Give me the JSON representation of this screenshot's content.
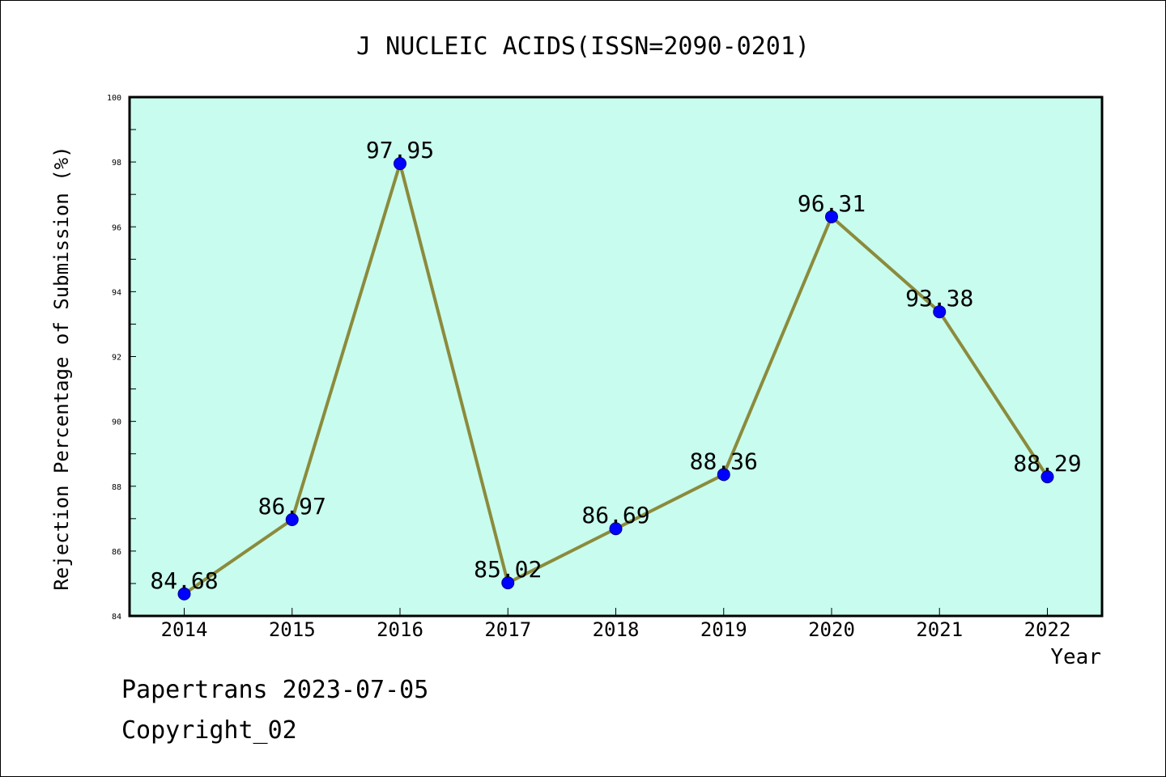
{
  "chart_data": {
    "type": "line",
    "title": "J NUCLEIC ACIDS(ISSN=2090-0201)",
    "xlabel": "Year",
    "ylabel": "Rejection Percentage of Submission (%)",
    "categories": [
      "2014",
      "2015",
      "2016",
      "2017",
      "2018",
      "2019",
      "2020",
      "2021",
      "2022"
    ],
    "values": [
      84.68,
      86.97,
      97.95,
      85.02,
      86.69,
      88.36,
      96.31,
      93.38,
      88.29
    ],
    "data_labels": [
      "84.68",
      "86.97",
      "97.95",
      "85.02",
      "86.69",
      "88.36",
      "96.31",
      "93.38",
      "88.29"
    ],
    "ylim": [
      84,
      100
    ],
    "yticks": [
      "84",
      "86",
      "88",
      "90",
      "92",
      "94",
      "96",
      "98",
      "100"
    ],
    "grid": false,
    "colors": {
      "plot_background": "#c8fcee",
      "line": "#8b8b3c",
      "marker": "#0000ff"
    }
  },
  "footer": {
    "line1": "Papertrans 2023-07-05",
    "line2": "Copyright_02"
  }
}
